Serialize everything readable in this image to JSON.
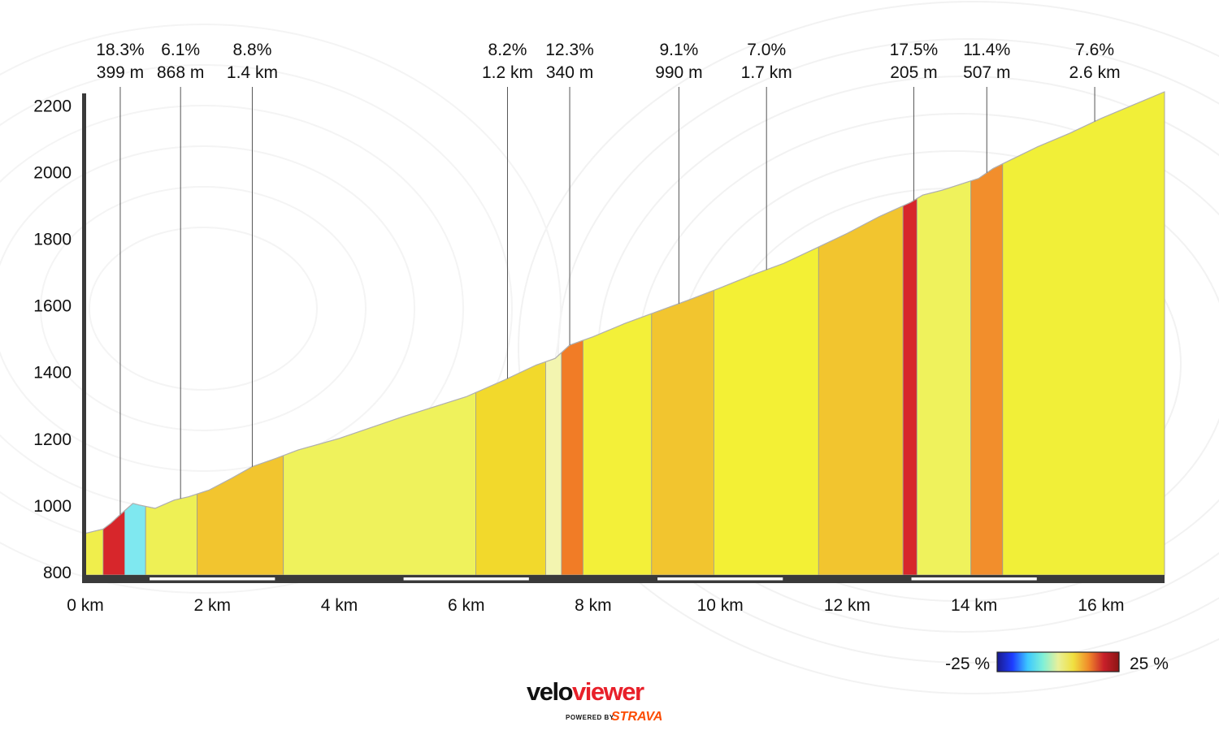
{
  "chart_data": {
    "type": "area",
    "title": "",
    "xlabel": "",
    "ylabel": "",
    "x_unit": "km",
    "xlim": [
      0,
      17.0
    ],
    "ylim": [
      790,
      2240
    ],
    "x_ticks": [
      0,
      2,
      4,
      6,
      8,
      10,
      12,
      14,
      16
    ],
    "x_tick_labels": [
      "0 km",
      "2 km",
      "4 km",
      "6 km",
      "8 km",
      "10 km",
      "12 km",
      "14 km",
      "16 km"
    ],
    "y_ticks": [
      800,
      1000,
      1200,
      1400,
      1600,
      1800,
      2000,
      2200
    ],
    "y_tick_labels": [
      "800",
      "1000",
      "1200",
      "1400",
      "1600",
      "1800",
      "2000",
      "2200"
    ],
    "grid": false,
    "profile": {
      "x": [
        0,
        0.28,
        0.4,
        0.53,
        0.75,
        0.85,
        1.1,
        1.4,
        1.63,
        1.95,
        2.3,
        2.63,
        3.0,
        3.35,
        4.0,
        5.0,
        6.0,
        6.6,
        7.1,
        7.4,
        7.63,
        8.0,
        8.5,
        9.0,
        9.5,
        9.98,
        10.5,
        11.0,
        11.5,
        12.0,
        12.5,
        13.0,
        13.19,
        13.5,
        14.07,
        14.3,
        14.57,
        15.0,
        15.5,
        16.0,
        16.5,
        17.0
      ],
      "y": [
        915,
        928,
        945,
        968,
        1005,
        1000,
        990,
        1015,
        1025,
        1045,
        1080,
        1115,
        1140,
        1165,
        1200,
        1265,
        1325,
        1375,
        1420,
        1440,
        1480,
        1505,
        1545,
        1580,
        1615,
        1650,
        1690,
        1725,
        1770,
        1815,
        1865,
        1908,
        1930,
        1945,
        1980,
        2010,
        2035,
        2075,
        2115,
        2160,
        2200,
        2240
      ]
    },
    "segments": [
      {
        "start": 0.0,
        "end": 0.28,
        "color": "#f0ee4c"
      },
      {
        "start": 0.28,
        "end": 0.62,
        "color": "#d7262b"
      },
      {
        "start": 0.62,
        "end": 0.95,
        "color": "#7fe8f0"
      },
      {
        "start": 0.95,
        "end": 1.76,
        "color": "#eef055"
      },
      {
        "start": 1.76,
        "end": 3.12,
        "color": "#f2c52f"
      },
      {
        "start": 3.12,
        "end": 6.15,
        "color": "#eff25c"
      },
      {
        "start": 6.15,
        "end": 7.25,
        "color": "#f2d92c"
      },
      {
        "start": 7.25,
        "end": 7.5,
        "color": "#f3f5b0"
      },
      {
        "start": 7.5,
        "end": 7.84,
        "color": "#f17c26"
      },
      {
        "start": 7.84,
        "end": 8.92,
        "color": "#f3f039"
      },
      {
        "start": 8.92,
        "end": 9.9,
        "color": "#f2c52f"
      },
      {
        "start": 9.9,
        "end": 11.55,
        "color": "#f3f035"
      },
      {
        "start": 11.55,
        "end": 12.88,
        "color": "#f2c52f"
      },
      {
        "start": 12.88,
        "end": 13.1,
        "color": "#d7262b"
      },
      {
        "start": 13.1,
        "end": 13.95,
        "color": "#eff25c"
      },
      {
        "start": 13.95,
        "end": 14.45,
        "color": "#f28e2c"
      },
      {
        "start": 14.45,
        "end": 17.0,
        "color": "#f1ef38"
      }
    ],
    "climb_annotations": [
      {
        "x": 0.55,
        "percent": "18.3%",
        "length": "399 m"
      },
      {
        "x": 1.5,
        "percent": "6.1%",
        "length": "868 m"
      },
      {
        "x": 2.63,
        "percent": "8.8%",
        "length": "1.4 km"
      },
      {
        "x": 6.65,
        "percent": "8.2%",
        "length": "1.2 km"
      },
      {
        "x": 7.63,
        "percent": "12.3%",
        "length": "340 m"
      },
      {
        "x": 9.35,
        "percent": "9.1%",
        "length": "990 m"
      },
      {
        "x": 10.73,
        "percent": "7.0%",
        "length": "1.7 km"
      },
      {
        "x": 13.05,
        "percent": "17.5%",
        "length": "205 m"
      },
      {
        "x": 14.2,
        "percent": "11.4%",
        "length": "507 m"
      },
      {
        "x": 15.9,
        "percent": "7.6%",
        "length": "2.6 km"
      }
    ]
  },
  "legend": {
    "min_label": "-25 %",
    "max_label": "25 %",
    "gradient_colors": [
      "#1a1a8c",
      "#1e3cff",
      "#3cc8ff",
      "#7ff0d8",
      "#e8f09a",
      "#f0e040",
      "#f08a2a",
      "#c8202a",
      "#8c1414"
    ]
  },
  "brand": {
    "name": "veloviewer",
    "name_part1": "velo",
    "name_part2": "viewer",
    "powered_by": "POWERED BY",
    "partner": "STRAVA"
  }
}
